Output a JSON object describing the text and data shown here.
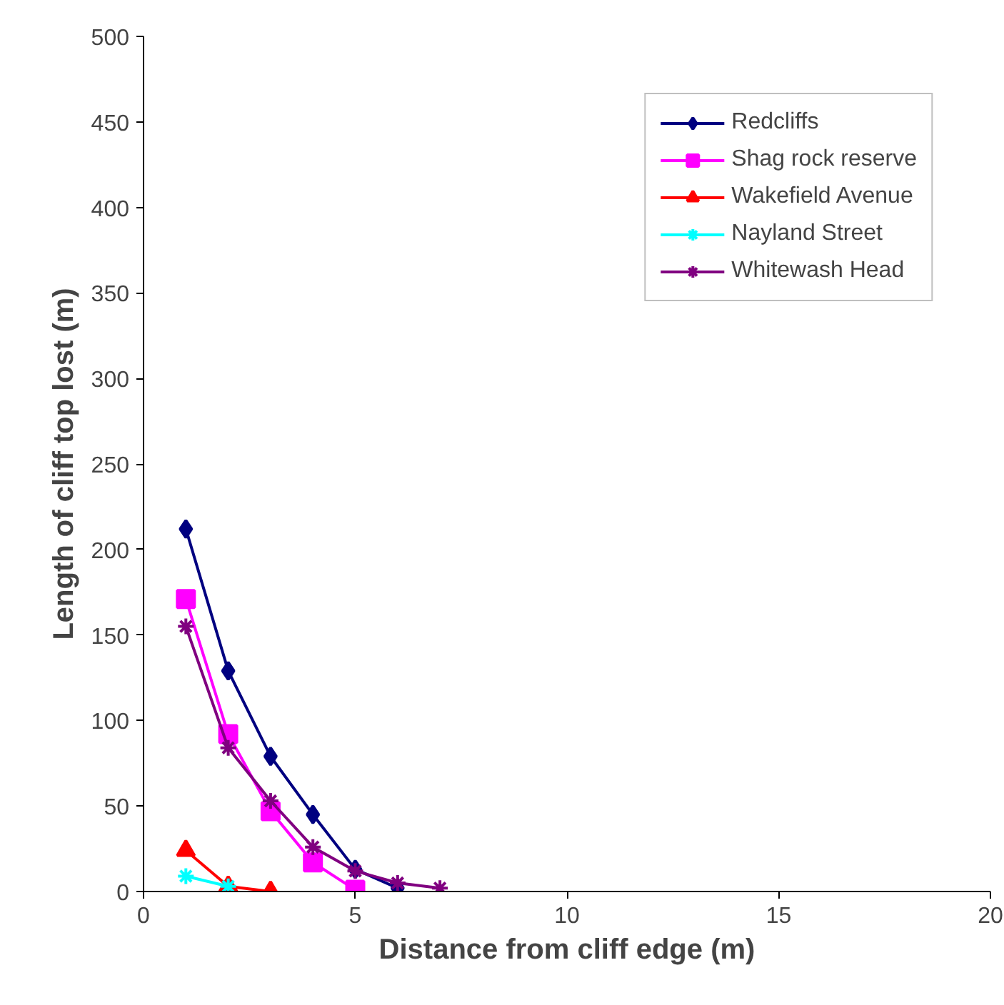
{
  "chart_data": {
    "type": "line",
    "xlabel": "Distance from cliff edge (m)",
    "ylabel": "Length of cliff top lost (m)",
    "xlim": [
      0,
      20
    ],
    "xticks": [
      0,
      5,
      10,
      15,
      20
    ],
    "ylim": [
      0,
      500
    ],
    "yticks": [
      0,
      50,
      100,
      150,
      200,
      250,
      300,
      350,
      400,
      450,
      500
    ],
    "grid": false,
    "legend": "top right",
    "series": [
      {
        "name": "Redcliffs",
        "color": "#000080",
        "marker": "diamond",
        "x": [
          1,
          2,
          3,
          4,
          5,
          6
        ],
        "values": [
          212,
          129,
          79,
          45,
          13,
          2
        ]
      },
      {
        "name": "Shag rock reserve",
        "color": "#ff00ff",
        "marker": "square",
        "x": [
          1,
          2,
          3,
          4,
          5
        ],
        "values": [
          171,
          92,
          47,
          17,
          1
        ]
      },
      {
        "name": "Wakefield Avenue",
        "color": "#ff0000",
        "marker": "triangle",
        "x": [
          1,
          2,
          3
        ],
        "values": [
          24,
          3,
          0
        ]
      },
      {
        "name": "Nayland Street",
        "color": "#00ffff",
        "marker": "cross",
        "x": [
          1,
          2
        ],
        "values": [
          9,
          3
        ]
      },
      {
        "name": "Whitewash Head",
        "color": "#800080",
        "marker": "cross",
        "x": [
          1,
          2,
          3,
          4,
          5,
          6,
          7
        ],
        "values": [
          155,
          84,
          53,
          26,
          12,
          5,
          2
        ]
      }
    ]
  }
}
